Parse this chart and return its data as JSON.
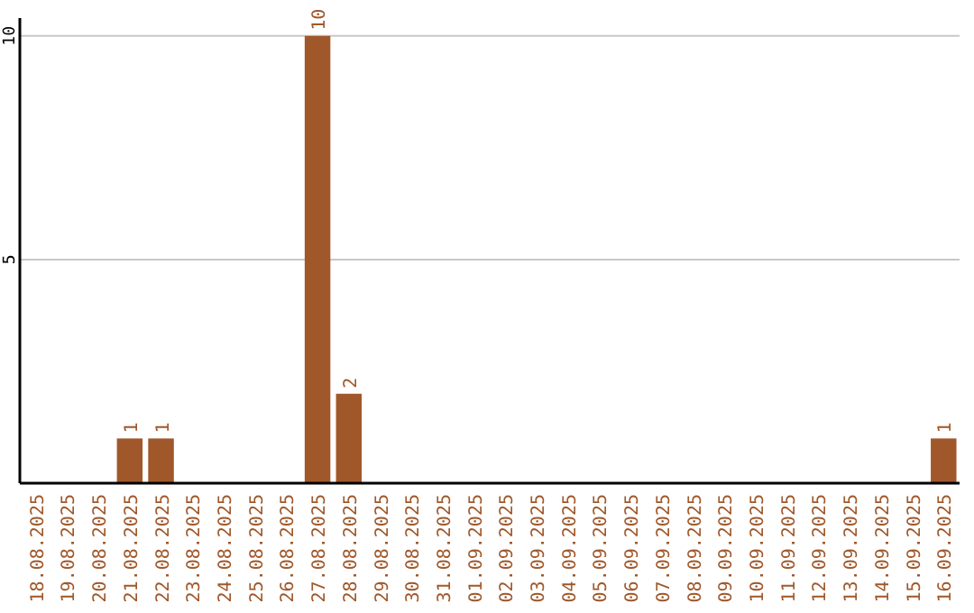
{
  "chart_data": {
    "type": "bar",
    "categories": [
      "18.08.2025",
      "19.08.2025",
      "20.08.2025",
      "21.08.2025",
      "22.08.2025",
      "23.08.2025",
      "24.08.2025",
      "25.08.2025",
      "26.08.2025",
      "27.08.2025",
      "28.08.2025",
      "29.08.2025",
      "30.08.2025",
      "31.08.2025",
      "01.09.2025",
      "02.09.2025",
      "03.09.2025",
      "04.09.2025",
      "05.09.2025",
      "06.09.2025",
      "07.09.2025",
      "08.09.2025",
      "09.09.2025",
      "10.09.2025",
      "11.09.2025",
      "12.09.2025",
      "13.09.2025",
      "14.09.2025",
      "15.09.2025",
      "16.09.2025"
    ],
    "values": [
      0,
      0,
      0,
      1,
      1,
      0,
      0,
      0,
      0,
      10,
      2,
      0,
      0,
      0,
      0,
      0,
      0,
      0,
      0,
      0,
      0,
      0,
      0,
      0,
      0,
      0,
      0,
      0,
      0,
      1
    ],
    "value_labels": [
      null,
      null,
      null,
      "1",
      "1",
      null,
      null,
      null,
      null,
      "10",
      "2",
      null,
      null,
      null,
      null,
      null,
      null,
      null,
      null,
      null,
      null,
      null,
      null,
      null,
      null,
      null,
      null,
      null,
      null,
      "1"
    ],
    "color": "#a0582a",
    "ylim": [
      0,
      10.4
    ],
    "yticks": [
      5,
      10
    ],
    "grid": "y"
  }
}
